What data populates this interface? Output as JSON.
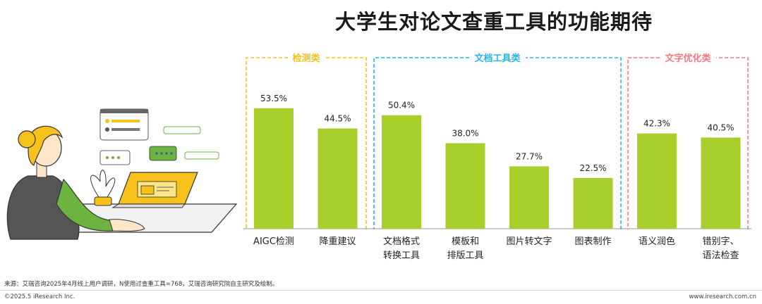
{
  "title": "大学生对论文查重工具的功能期待",
  "source": "来源：艾瑞咨询2025年4月线上用户调研，N使用过查重工具=768，艾瑞咨询研究院自主研究及绘制。",
  "copyright": "©2025.5 iResearch Inc.",
  "website": "www.iresearch.com.cn",
  "colors": {
    "bar": "#a8cf2b",
    "group_detect": "#f2c31a",
    "group_doc": "#2bb5e6",
    "group_text": "#ef7a86"
  },
  "chart_data": {
    "type": "bar",
    "ylim": [
      0,
      60
    ],
    "groups": [
      {
        "label": "检测类",
        "color": "#f2c31a",
        "items": [
          0,
          1
        ]
      },
      {
        "label": "文档工具类",
        "color": "#2bb5e6",
        "items": [
          2,
          3,
          4,
          5
        ]
      },
      {
        "label": "文字优化类",
        "color": "#ef7a86",
        "items": [
          6,
          7
        ]
      }
    ],
    "categories": [
      [
        "AIGC检测"
      ],
      [
        "降重建议"
      ],
      [
        "文档格式",
        "转换工具"
      ],
      [
        "模板和",
        "排版工具"
      ],
      [
        "图片转文字"
      ],
      [
        "图表制作"
      ],
      [
        "语义润色"
      ],
      [
        "错别字、",
        "语法检查"
      ]
    ],
    "values": [
      53.5,
      44.5,
      50.4,
      38.0,
      27.7,
      22.5,
      42.3,
      40.5
    ],
    "value_labels": [
      "53.5%",
      "44.5%",
      "50.4%",
      "38.0%",
      "27.7%",
      "22.5%",
      "42.3%",
      "40.5%"
    ]
  }
}
